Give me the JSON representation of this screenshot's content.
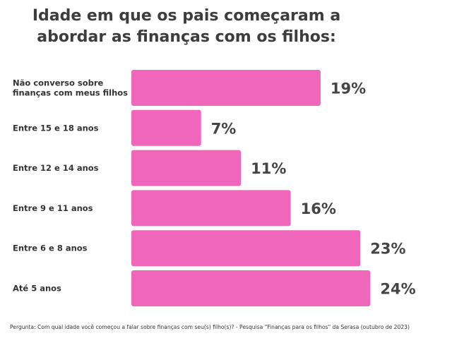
{
  "chart_data": {
    "type": "bar",
    "orientation": "horizontal",
    "title_lines": [
      "Idade em que os pais começaram a",
      "abordar as finanças com os filhos:"
    ],
    "categories": [
      [
        "Não converso sobre",
        "finanças com meus filhos"
      ],
      [
        "Entre 15 e 18 anos"
      ],
      [
        "Entre 12 e 14 anos"
      ],
      [
        "Entre 9 e 11 anos"
      ],
      [
        "Entre 6 e 8 anos"
      ],
      [
        "Até 5 anos"
      ]
    ],
    "values": [
      19,
      7,
      11,
      16,
      23,
      24
    ],
    "value_labels": [
      "19%",
      "7%",
      "11%",
      "16%",
      "23%",
      "24%"
    ],
    "unit": "%",
    "bar_color": "#f066bb",
    "grid": false,
    "legend": "none"
  },
  "footnote": "Pergunta: Com qual idade você começou a falar sobre finanças com seu(s) filho(s)? - Pesquisa \"Finanças para os filhos\" da Serasa (outubro de 2023)"
}
